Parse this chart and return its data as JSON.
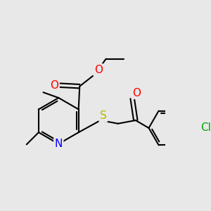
{
  "bg_color": "#e8e8e8",
  "bond_color": "#000000",
  "bond_width": 1.5,
  "atom_colors": {
    "O": "#ff0000",
    "N": "#0000ff",
    "S": "#b8b800",
    "Cl": "#00aa00",
    "C": "#000000"
  },
  "font_size": 10,
  "fig_size": [
    3.0,
    3.0
  ],
  "dpi": 100
}
